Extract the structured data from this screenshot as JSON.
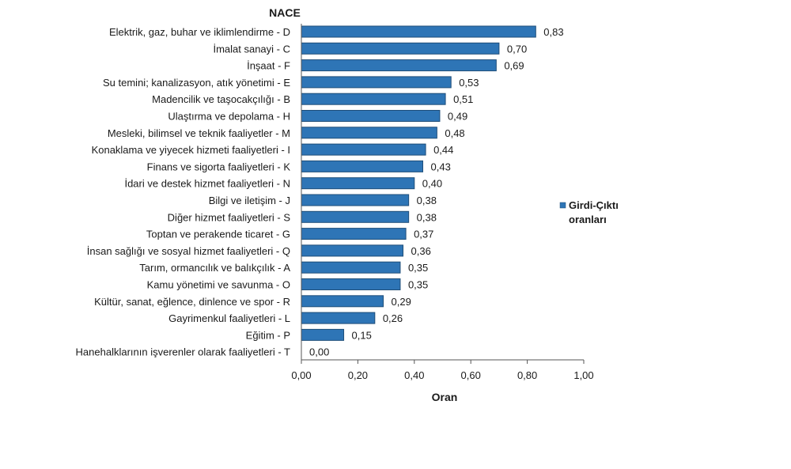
{
  "chart_data": {
    "type": "bar",
    "orientation": "horizontal",
    "title": "",
    "ylabel": "NACE",
    "xlabel": "Oran",
    "xlim": [
      0,
      1
    ],
    "xticks": [
      "0,00",
      "0,20",
      "0,40",
      "0,60",
      "0,80",
      "1,00"
    ],
    "xtick_values": [
      0,
      0.2,
      0.4,
      0.6,
      0.8,
      1.0
    ],
    "grid": false,
    "legend": {
      "position": "right",
      "entries": [
        "Girdi-Çıktı oranları"
      ],
      "lines": [
        "Girdi-Çıktı",
        "oranları"
      ]
    },
    "colors": {
      "bar": "#2e75b6",
      "bar_border": "#1f4e79"
    },
    "categories": [
      "Elektrik, gaz, buhar ve iklimlendirme - D",
      "İmalat sanayi - C",
      "İnşaat - F",
      "Su temini; kanalizasyon, atık yönetimi - E",
      "Madencilik ve taşocakçılığı - B",
      "Ulaştırma ve depolama - H",
      "Mesleki, bilimsel ve teknik faaliyetler - M",
      "Konaklama ve yiyecek hizmeti faaliyetleri - I",
      "Finans ve sigorta faaliyetleri - K",
      "İdari ve destek hizmet faaliyetleri - N",
      "Bilgi ve iletişim - J",
      "Diğer hizmet faaliyetleri - S",
      "Toptan ve perakende ticaret - G",
      "İnsan sağlığı ve sosyal hizmet faaliyetleri - Q",
      "Tarım, ormancılık ve balıkçılık - A",
      "Kamu yönetimi ve savunma - O",
      "Kültür, sanat, eğlence, dinlence ve spor - R",
      "Gayrimenkul faaliyetleri - L",
      "Eğitim - P",
      "Hanehalklarının işverenler olarak  faaliyetleri - T"
    ],
    "series": [
      {
        "name": "Girdi-Çıktı oranları",
        "values": [
          0.83,
          0.7,
          0.69,
          0.53,
          0.51,
          0.49,
          0.48,
          0.44,
          0.43,
          0.4,
          0.38,
          0.38,
          0.37,
          0.36,
          0.35,
          0.35,
          0.29,
          0.26,
          0.15,
          0.0
        ],
        "labels": [
          "0,83",
          "0,70",
          "0,69",
          "0,53",
          "0,51",
          "0,49",
          "0,48",
          "0,44",
          "0,43",
          "0,40",
          "0,38",
          "0,38",
          "0,37",
          "0,36",
          "0,35",
          "0,35",
          "0,29",
          "0,26",
          "0,15",
          "0,00"
        ]
      }
    ]
  }
}
